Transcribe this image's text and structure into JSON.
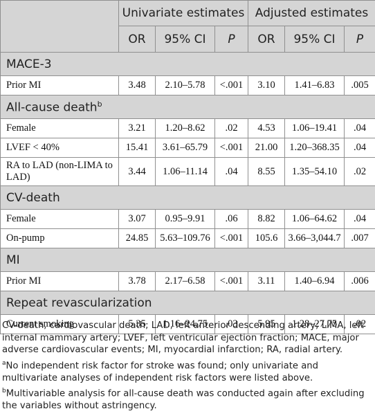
{
  "header": {
    "univariate": "Univariate estimates",
    "adjusted": "Adjusted estimates",
    "or": "OR",
    "ci": "95% CI",
    "p": "P"
  },
  "sections": [
    {
      "title": "MACE-3",
      "sup": "",
      "rows": [
        {
          "label": "Prior MI",
          "u_or": "3.48",
          "u_ci": "2.10–5.78",
          "u_p": "<.001",
          "a_or": "3.10",
          "a_ci": "1.41–6.83",
          "a_p": ".005"
        }
      ]
    },
    {
      "title": "All-cause death",
      "sup": "b",
      "rows": [
        {
          "label": "Female",
          "u_or": "3.21",
          "u_ci": "1.20–8.62",
          "u_p": ".02",
          "a_or": "4.53",
          "a_ci": "1.06–19.41",
          "a_p": ".04"
        },
        {
          "label": "LVEF < 40%",
          "u_or": "15.41",
          "u_ci": "3.61–65.79",
          "u_p": "<.001",
          "a_or": "21.00",
          "a_ci": "1.20–368.35",
          "a_p": ".04"
        },
        {
          "label": "RA to LAD (non-LIMA to LAD)",
          "u_or": "3.44",
          "u_ci": "1.06–11.14",
          "u_p": ".04",
          "a_or": "8.55",
          "a_ci": "1.35–54.10",
          "a_p": ".02"
        }
      ]
    },
    {
      "title": "CV-death",
      "sup": "",
      "rows": [
        {
          "label": "Female",
          "u_or": "3.07",
          "u_ci": "0.95–9.91",
          "u_p": ".06",
          "a_or": "8.82",
          "a_ci": "1.06–64.62",
          "a_p": ".04"
        },
        {
          "label": "On-pump",
          "u_or": "24.85",
          "u_ci": "5.63–109.76",
          "u_p": "<.001",
          "a_or": "105.6",
          "a_ci": "3.66–3,044.7",
          "a_p": ".007"
        }
      ]
    },
    {
      "title": "MI",
      "sup": "",
      "rows": [
        {
          "label": "Prior MI",
          "u_or": "3.78",
          "u_ci": "2.17–6.58",
          "u_p": "<.001",
          "a_or": "3.11",
          "a_ci": "1.40–6.94",
          "a_p": ".006"
        }
      ]
    },
    {
      "title": "Repeat revascularization",
      "sup": "",
      "rows": [
        {
          "label": "Current smoking",
          "u_or": "5.35",
          "u_ci": "1.16–24.75",
          "u_p": ".03",
          "a_or": "5.95",
          "a_ci": "1.28–27.75",
          "a_p": ".02"
        }
      ]
    }
  ],
  "footnotes": {
    "abbreviations": "CV-death, cardiovascular death; LAD, left anterior descending artery; LIMA, left internal mammary artery; LVEF, left ventricular ejection fraction; MACE, major adverse cardiovascular events; MI, myocardial infarction; RA, radial artery.",
    "note_a_mark": "a",
    "note_a": "No independent risk factor for stroke was found; only univariate and multivariate analyses of independent risk factors were listed above.",
    "note_b_mark": "b",
    "note_b": "Multivariable analysis for all-cause death was conducted again after excluding the variables without astringency."
  }
}
